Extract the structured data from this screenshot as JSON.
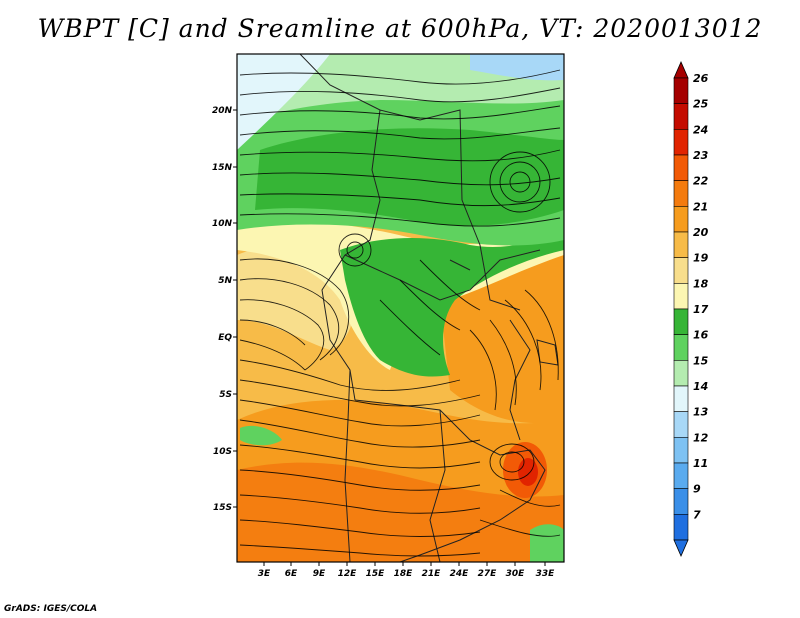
{
  "title": "WBPT [C] and Sreamline at 600hPa, VT: 2020013012",
  "credit": "GrADS: IGES/COLA",
  "map": {
    "lat_labels": [
      "20N",
      "15N",
      "10N",
      "5N",
      "EQ",
      "5S",
      "10S",
      "15S"
    ],
    "lon_labels": [
      "3E",
      "6E",
      "9E",
      "12E",
      "15E",
      "18E",
      "21E",
      "24E",
      "27E",
      "30E",
      "33E"
    ]
  },
  "colorbar": {
    "labels": [
      "26",
      "25",
      "24",
      "23",
      "22",
      "21",
      "20",
      "19",
      "18",
      "17",
      "16",
      "15",
      "14",
      "13",
      "12",
      "11",
      "9",
      "7"
    ],
    "colors": {
      "26": "#a50000",
      "25": "#c40c00",
      "24": "#e12400",
      "23": "#f25a06",
      "22": "#f47b0e",
      "21": "#f69c1e",
      "20": "#f7bb48",
      "19": "#f8de8c",
      "18": "#fcf6b2",
      "17": "#36b536",
      "16": "#5fd25f",
      "15": "#b4ecb0",
      "14": "#e2f6fb",
      "13": "#a8d8f7",
      "12": "#7ec2f3",
      "11": "#5aabef",
      "9": "#3a8fe8",
      "7": "#1f6fe0"
    }
  }
}
